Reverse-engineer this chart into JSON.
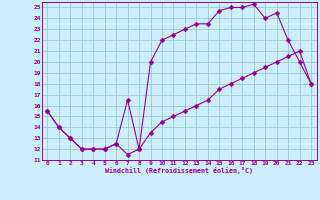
{
  "xlabel": "Windchill (Refroidissement éolien,°C)",
  "background_color": "#cceeff",
  "grid_color": "#99cccc",
  "line_color": "#990099",
  "markersize": 2.5,
  "xlim": [
    -0.5,
    23.5
  ],
  "ylim": [
    11,
    25.5
  ],
  "xticks": [
    0,
    1,
    2,
    3,
    4,
    5,
    6,
    7,
    8,
    9,
    10,
    11,
    12,
    13,
    14,
    15,
    16,
    17,
    18,
    19,
    20,
    21,
    22,
    23
  ],
  "yticks": [
    11,
    12,
    13,
    14,
    15,
    16,
    17,
    18,
    19,
    20,
    21,
    22,
    23,
    24,
    25
  ],
  "line1_x": [
    0,
    1,
    2,
    3,
    4,
    5,
    6,
    7,
    8,
    9,
    10,
    11,
    12,
    13,
    14,
    15,
    16,
    17,
    18,
    19,
    20,
    21,
    22,
    23
  ],
  "line1_y": [
    15.5,
    14.0,
    13.0,
    12.0,
    12.0,
    12.0,
    12.5,
    11.5,
    12.0,
    13.5,
    14.5,
    15.0,
    15.5,
    16.0,
    16.5,
    17.5,
    18.0,
    18.5,
    19.0,
    19.5,
    20.0,
    20.5,
    21.0,
    18.0
  ],
  "line2_x": [
    0,
    1,
    2,
    3,
    4,
    5,
    6,
    7,
    8,
    9,
    10,
    11,
    12,
    13,
    14,
    15,
    16,
    17,
    18,
    19,
    20,
    21,
    22,
    23
  ],
  "line2_y": [
    15.5,
    14.0,
    13.0,
    12.0,
    12.0,
    12.0,
    12.5,
    16.5,
    12.0,
    20.0,
    22.0,
    22.5,
    23.0,
    23.5,
    23.5,
    24.7,
    25.0,
    25.0,
    25.3,
    24.0,
    24.5,
    22.0,
    20.0,
    18.0
  ]
}
